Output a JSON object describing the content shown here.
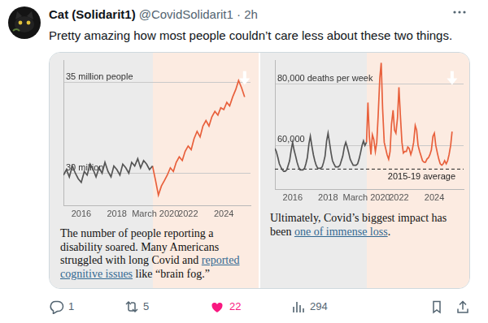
{
  "post": {
    "author_name": "Cat (Solidarit1)",
    "author_meta": "@CovidSolidarit1 · 2h",
    "text": "Pretty amazing how most people couldn’t care less about these two things.",
    "replies": 1,
    "reposts": 5,
    "likes": 22,
    "views": 294
  },
  "chart_data": [
    {
      "type": "line",
      "caption": [
        {
          "text": "The number of people reporting a disability soared. Many Americans struggled with long Covid and "
        },
        {
          "text": "reported cognitive issues",
          "link": true
        },
        {
          "text": " like “brain fog.”"
        }
      ],
      "x": [
        2015,
        2015.17,
        2015.33,
        2015.5,
        2015.67,
        2015.83,
        2016,
        2016.17,
        2016.33,
        2016.5,
        2016.67,
        2016.83,
        2017,
        2017.17,
        2017.33,
        2017.5,
        2017.67,
        2017.83,
        2018,
        2018.17,
        2018.33,
        2018.5,
        2018.67,
        2018.83,
        2019,
        2019.17,
        2019.33,
        2019.5,
        2019.67,
        2019.83,
        2020,
        2020.17,
        2020.33,
        2020.5,
        2020.67,
        2020.83,
        2021,
        2021.17,
        2021.33,
        2021.5,
        2021.67,
        2021.83,
        2022,
        2022.17,
        2022.33,
        2022.5,
        2022.67,
        2022.83,
        2023,
        2023.17,
        2023.33,
        2023.5,
        2023.67,
        2023.83,
        2024,
        2024.17,
        2024.33,
        2024.5,
        2024.67,
        2024.83,
        2025,
        2025.17
      ],
      "series": [
        {
          "color": "#555555",
          "values": [
            29.9,
            30.2,
            29.8,
            30.4,
            30.0,
            29.7,
            29.5,
            30.1,
            29.9,
            30.5,
            30.2,
            29.8,
            30.3,
            30.0,
            30.6,
            30.1,
            29.8,
            30.4,
            30.2,
            29.9,
            30.5,
            30.3,
            30.0,
            30.6,
            30.4,
            30.8,
            30.3,
            30.7,
            30.5,
            30.2,
            30.4,
            null,
            null,
            null,
            null,
            null,
            null,
            null,
            null,
            null,
            null,
            null,
            null,
            null,
            null,
            null,
            null,
            null,
            null,
            null,
            null,
            null,
            null,
            null,
            null,
            null,
            null,
            null,
            null,
            null,
            null,
            null
          ]
        },
        {
          "color": "#e8603c",
          "values": [
            null,
            null,
            null,
            null,
            null,
            null,
            null,
            null,
            null,
            null,
            null,
            null,
            null,
            null,
            null,
            null,
            null,
            null,
            null,
            null,
            null,
            null,
            null,
            null,
            null,
            null,
            null,
            null,
            null,
            null,
            30.4,
            29.6,
            28.8,
            29.3,
            29.6,
            29.9,
            30.3,
            30.1,
            30.6,
            30.9,
            30.7,
            31.2,
            31.5,
            31.3,
            31.9,
            32.3,
            32.0,
            32.6,
            32.9,
            32.6,
            33.1,
            33.4,
            33.2,
            33.6,
            33.5,
            33.9,
            33.7,
            34.2,
            34.6,
            35.1,
            34.7,
            34.2
          ]
        }
      ],
      "xlim": [
        2015,
        2025.5
      ],
      "xticks": [
        2016,
        2018,
        {
          "value": 2020.17,
          "label": "March 2020"
        },
        2022,
        2024
      ],
      "ylim": [
        28.2,
        36.2
      ],
      "yticks": [
        {
          "value": 30,
          "label": "30 million"
        },
        {
          "value": 35,
          "label": "35 million people"
        }
      ],
      "grid": "y"
    },
    {
      "type": "line",
      "caption": [
        {
          "text": "Ultimately, Covid’s biggest impact has been "
        },
        {
          "text": "one of immense loss",
          "link": true
        },
        {
          "text": "."
        }
      ],
      "x": [
        2015,
        2015.08,
        2015.17,
        2015.25,
        2015.33,
        2015.42,
        2015.5,
        2015.58,
        2015.67,
        2015.75,
        2015.83,
        2015.92,
        2016,
        2016.08,
        2016.17,
        2016.25,
        2016.33,
        2016.42,
        2016.5,
        2016.58,
        2016.67,
        2016.75,
        2016.83,
        2016.92,
        2017,
        2017.08,
        2017.17,
        2017.25,
        2017.33,
        2017.42,
        2017.5,
        2017.58,
        2017.67,
        2017.75,
        2017.83,
        2017.92,
        2018,
        2018.08,
        2018.17,
        2018.25,
        2018.33,
        2018.42,
        2018.5,
        2018.58,
        2018.67,
        2018.75,
        2018.83,
        2018.92,
        2019,
        2019.08,
        2019.17,
        2019.25,
        2019.33,
        2019.42,
        2019.5,
        2019.58,
        2019.67,
        2019.75,
        2019.83,
        2019.92,
        2020,
        2020.08,
        2020.17,
        2020.25,
        2020.33,
        2020.42,
        2020.5,
        2020.58,
        2020.67,
        2020.75,
        2020.83,
        2020.92,
        2021,
        2021.08,
        2021.17,
        2021.25,
        2021.33,
        2021.42,
        2021.5,
        2021.58,
        2021.67,
        2021.75,
        2021.83,
        2021.92,
        2022,
        2022.08,
        2022.17,
        2022.25,
        2022.33,
        2022.42,
        2022.5,
        2022.58,
        2022.67,
        2022.75,
        2022.83,
        2022.92,
        2023,
        2023.08,
        2023.17,
        2023.25,
        2023.33,
        2023.42,
        2023.5,
        2023.58,
        2023.67,
        2023.75,
        2023.83,
        2023.92,
        2024,
        2024.08,
        2024.17,
        2024.25,
        2024.33,
        2024.42,
        2024.5,
        2024.58,
        2024.67,
        2024.75,
        2024.83,
        2024.92,
        2025
      ],
      "series": [
        {
          "color": "#555555",
          "values": [
            59000,
            58000,
            56000,
            54000,
            53000,
            52000,
            51500,
            51500,
            52000,
            53500,
            55000,
            58500,
            61000,
            58500,
            56500,
            54500,
            53000,
            52000,
            52000,
            52000,
            52500,
            54000,
            56000,
            60500,
            63000,
            60000,
            57000,
            55000,
            53500,
            52500,
            52500,
            52500,
            53000,
            54500,
            56500,
            61500,
            64000,
            61000,
            57500,
            55000,
            54000,
            53000,
            53000,
            53000,
            53500,
            55000,
            56500,
            59500,
            61000,
            59500,
            57500,
            55500,
            54500,
            53500,
            53500,
            53500,
            54000,
            55500,
            57500,
            60000,
            61500,
            60000,
            61000,
            null,
            null,
            null,
            null,
            null,
            null,
            null,
            null,
            null,
            null,
            null,
            null,
            null,
            null,
            null,
            null,
            null,
            null,
            null,
            null,
            null,
            null,
            null,
            null,
            null,
            null,
            null,
            null,
            null,
            null,
            null,
            null,
            null,
            null,
            null,
            null,
            null,
            null,
            null,
            null,
            null,
            null,
            null,
            null,
            null,
            null,
            null,
            null,
            null,
            null,
            null,
            null,
            null,
            null,
            null,
            null,
            null,
            null
          ]
        },
        {
          "color": "#e8603c",
          "values": [
            null,
            null,
            null,
            null,
            null,
            null,
            null,
            null,
            null,
            null,
            null,
            null,
            null,
            null,
            null,
            null,
            null,
            null,
            null,
            null,
            null,
            null,
            null,
            null,
            null,
            null,
            null,
            null,
            null,
            null,
            null,
            null,
            null,
            null,
            null,
            null,
            null,
            null,
            null,
            null,
            null,
            null,
            null,
            null,
            null,
            null,
            null,
            null,
            null,
            null,
            null,
            null,
            null,
            null,
            null,
            null,
            null,
            null,
            null,
            null,
            null,
            null,
            61000,
            74000,
            63000,
            57000,
            63500,
            62000,
            58000,
            61000,
            70000,
            82000,
            87000,
            72000,
            61000,
            59000,
            57000,
            55500,
            58000,
            67000,
            71500,
            65000,
            64000,
            69000,
            79000,
            70000,
            61000,
            57500,
            58000,
            58000,
            59500,
            59000,
            57000,
            58500,
            61000,
            66500,
            65000,
            60000,
            58000,
            56500,
            55000,
            54500,
            54500,
            55500,
            56000,
            57000,
            58500,
            63000,
            64000,
            60000,
            57500,
            55500,
            54000,
            53500,
            54000,
            55000,
            54000,
            55000,
            57000,
            60000,
            64500
          ]
        }
      ],
      "annotations": [
        {
          "text": "2015-19 average",
          "y": 52250,
          "line_style": "dashed"
        }
      ],
      "xlim": [
        2015,
        2025.65
      ],
      "xticks": [
        2016,
        2018,
        {
          "value": 2020.17,
          "label": "March 2020"
        },
        2022,
        2024
      ],
      "ylim": [
        45500,
        87750
      ],
      "yticks": [
        {
          "value": 60000,
          "label": "60,000"
        },
        {
          "value": 80000,
          "label": "80,000 deaths per week"
        }
      ],
      "grid": "y"
    }
  ]
}
